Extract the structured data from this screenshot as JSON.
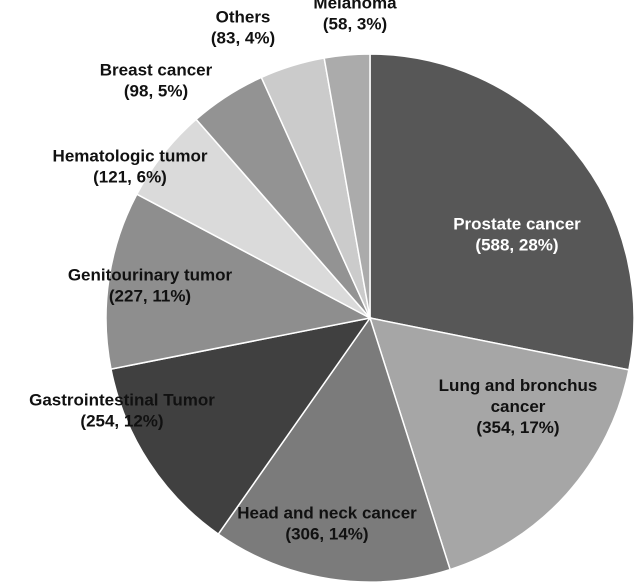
{
  "chart_data": {
    "type": "pie",
    "categories": [
      "Prostate cancer",
      "Lung and bronchus cancer",
      "Head and neck cancer",
      "Gastrointestinal Tumor",
      "Genitourinary tumor",
      "Hematologic tumor",
      "Breast cancer",
      "Others",
      "Melanoma"
    ],
    "values": [
      588,
      354,
      306,
      254,
      227,
      121,
      98,
      83,
      58
    ],
    "percents": [
      28,
      17,
      14,
      12,
      11,
      6,
      5,
      4,
      3
    ],
    "labels": [
      {
        "lines": [
          "Prostate cancer",
          "(588, 28%)"
        ]
      },
      {
        "lines": [
          "Lung and bronchus",
          "cancer",
          "(354, 17%)"
        ]
      },
      {
        "lines": [
          "Head and neck cancer",
          "(306, 14%)"
        ]
      },
      {
        "lines": [
          "Gastrointestinal Tumor",
          "(254, 12%)"
        ]
      },
      {
        "lines": [
          "Genitourinary tumor",
          "(227, 11%)"
        ]
      },
      {
        "lines": [
          "Hematologic tumor",
          "(121, 6%)"
        ]
      },
      {
        "lines": [
          "Breast cancer",
          "(98, 5%)"
        ]
      },
      {
        "lines": [
          "Others",
          "(83, 4%)"
        ]
      },
      {
        "lines": [
          "Melanoma",
          "(58, 3%)"
        ]
      }
    ],
    "colors": [
      "#575757",
      "#a6a6a6",
      "#7b7b7b",
      "#404040",
      "#8e8e8e",
      "#dadada",
      "#939393",
      "#cbcbcb",
      "#ababab"
    ],
    "label_colors": [
      "#ffffff",
      "#111111",
      "#111111",
      "#111111",
      "#111111",
      "#111111",
      "#111111",
      "#111111",
      "#111111"
    ],
    "start": "12 o'clock",
    "direction": "clockwise"
  }
}
